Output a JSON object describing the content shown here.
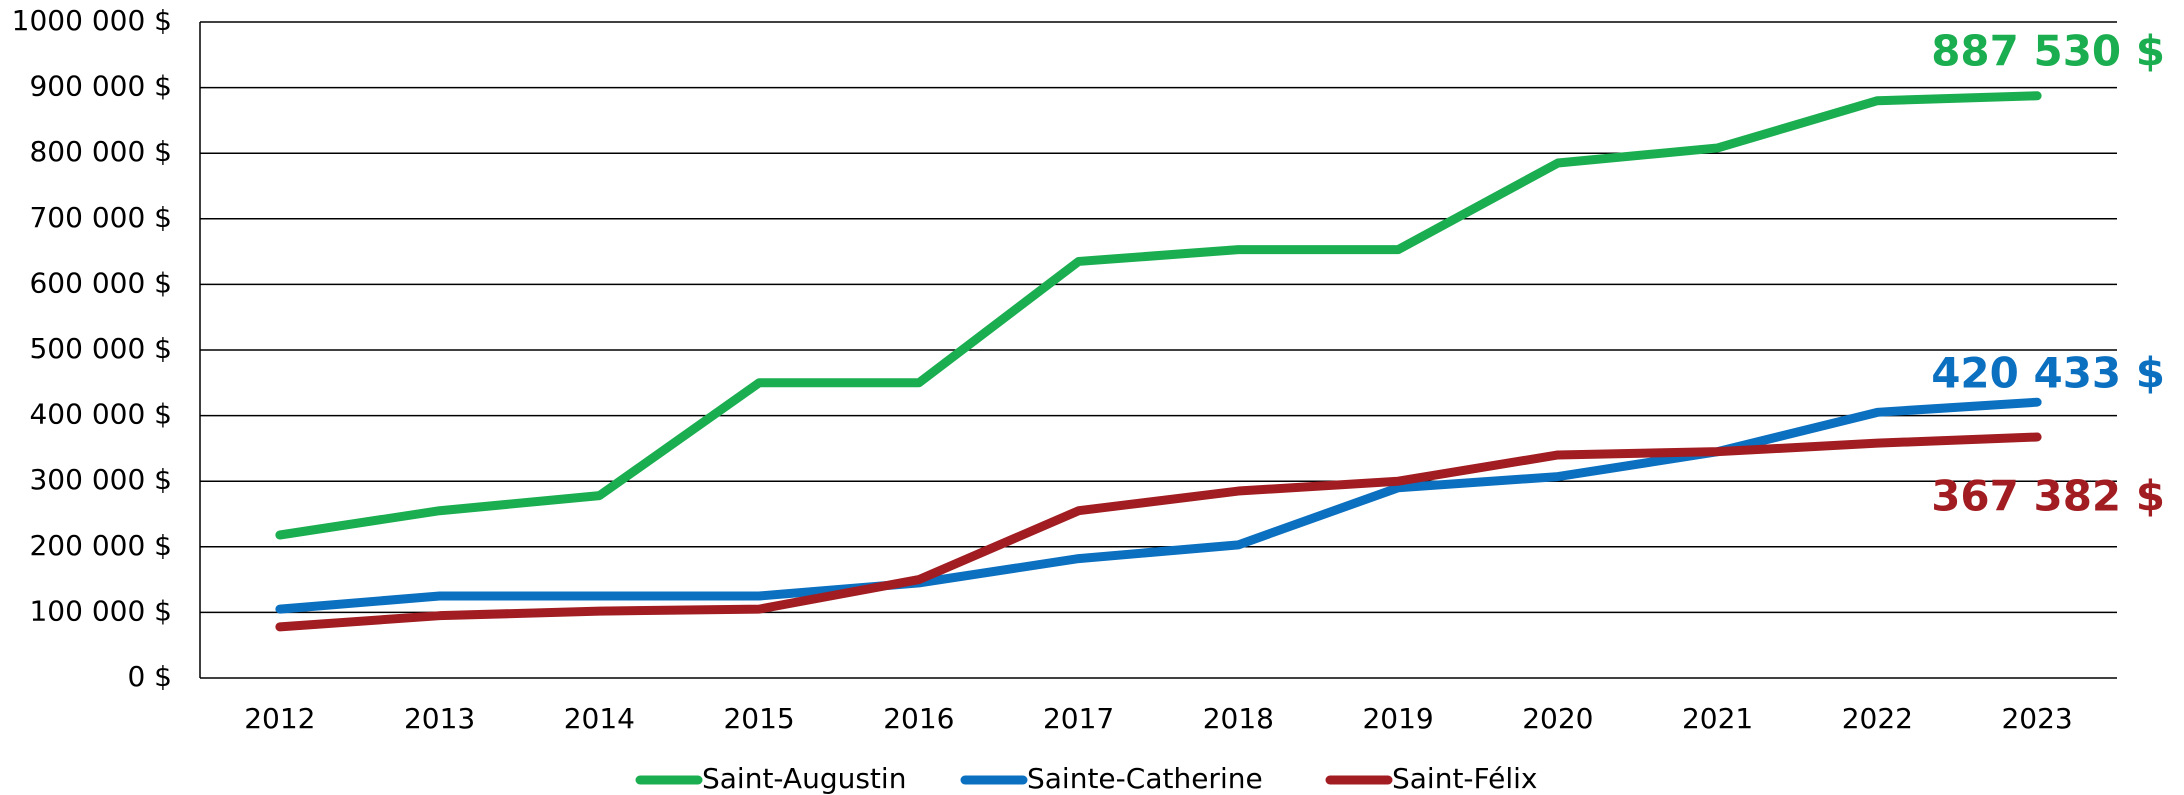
{
  "chart_data": {
    "type": "line",
    "categories": [
      "2012",
      "2013",
      "2014",
      "2015",
      "2016",
      "2017",
      "2018",
      "2019",
      "2020",
      "2021",
      "2022",
      "2023"
    ],
    "series": [
      {
        "name": "Saint-Augustin",
        "color": "#1aae50",
        "values": [
          218000,
          255000,
          278000,
          450000,
          450000,
          635000,
          653000,
          653000,
          785000,
          808000,
          880000,
          887530
        ],
        "value_labels": [
          null,
          null,
          null,
          null,
          null,
          null,
          null,
          null,
          null,
          null,
          null,
          "887 530 $"
        ]
      },
      {
        "name": "Sainte-Catherine",
        "color": "#0b70c0",
        "values": [
          105000,
          125000,
          125000,
          125000,
          145000,
          182000,
          203000,
          290000,
          307000,
          345000,
          405000,
          420433
        ],
        "value_labels": [
          null,
          null,
          null,
          null,
          null,
          null,
          null,
          null,
          null,
          null,
          null,
          "420 433 $"
        ]
      },
      {
        "name": "Saint-Félix",
        "color": "#a11d22",
        "values": [
          78000,
          95000,
          102000,
          105000,
          150000,
          255000,
          285000,
          300000,
          340000,
          345000,
          358000,
          367382
        ],
        "value_labels": [
          null,
          null,
          null,
          null,
          null,
          null,
          null,
          null,
          null,
          null,
          null,
          "367 382 $"
        ]
      }
    ],
    "ylim": [
      0,
      1000000
    ],
    "yticks": [
      {
        "value": 0,
        "label": "0 $"
      },
      {
        "value": 100000,
        "label": "100 000 $"
      },
      {
        "value": 200000,
        "label": "200 000 $"
      },
      {
        "value": 300000,
        "label": "300 000 $"
      },
      {
        "value": 400000,
        "label": "400 000 $"
      },
      {
        "value": 500000,
        "label": "500 000 $"
      },
      {
        "value": 600000,
        "label": "600 000 $"
      },
      {
        "value": 700000,
        "label": "700 000 $"
      },
      {
        "value": 800000,
        "label": "800 000 $"
      },
      {
        "value": 900000,
        "label": "900 000 $"
      },
      {
        "value": 1000000,
        "label": "1000 000 $"
      }
    ],
    "grid": true,
    "legend": "bottom"
  }
}
